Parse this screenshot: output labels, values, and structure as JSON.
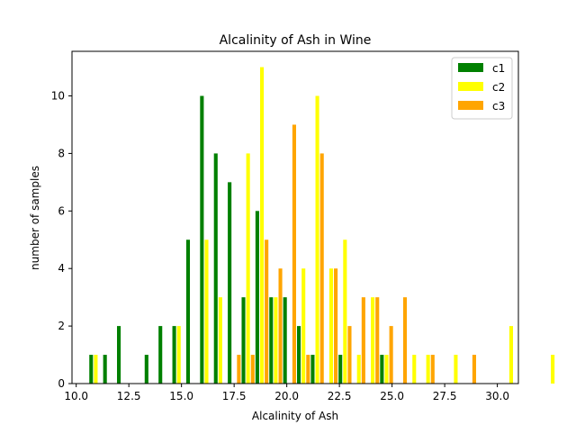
{
  "chart_data": {
    "type": "bar",
    "title": "Alcalinity of Ash in Wine",
    "xlabel": "Alcalinity of Ash",
    "ylabel": "number of samples",
    "xlim": [
      9.8,
      31.0
    ],
    "ylim": [
      0,
      11.55
    ],
    "xticks": [
      10.0,
      12.5,
      15.0,
      17.5,
      20.0,
      22.5,
      25.0,
      27.5,
      30.0
    ],
    "xtick_labels": [
      "10.0",
      "12.5",
      "15.0",
      "17.5",
      "20.0",
      "22.5",
      "25.0",
      "27.5",
      "30.0"
    ],
    "yticks": [
      0,
      2,
      4,
      6,
      8,
      10
    ],
    "ytick_labels": [
      "0",
      "2",
      "4",
      "6",
      "8",
      "10"
    ],
    "bin_start": 10.6,
    "bin_width": 0.6576,
    "grid": false,
    "legend_position": "top-right",
    "series": [
      {
        "name": "c1",
        "color": "#008000",
        "values": [
          1,
          1,
          2,
          0,
          1,
          2,
          2,
          5,
          10,
          8,
          7,
          3,
          6,
          3,
          3,
          2,
          1,
          0,
          1,
          0,
          0,
          1,
          0,
          0,
          0,
          0,
          0,
          0,
          0,
          0,
          0,
          0,
          0,
          0
        ]
      },
      {
        "name": "c2",
        "color": "#ffff00",
        "values": [
          1,
          0,
          0,
          0,
          0,
          0,
          2,
          0,
          5,
          3,
          0,
          8,
          11,
          3,
          0,
          4,
          10,
          4,
          5,
          1,
          3,
          1,
          0,
          1,
          1,
          0,
          1,
          0,
          0,
          0,
          2,
          0,
          0,
          1
        ]
      },
      {
        "name": "c3",
        "color": "#ffa500",
        "values": [
          0,
          0,
          0,
          0,
          0,
          0,
          0,
          0,
          0,
          0,
          1,
          1,
          5,
          4,
          9,
          1,
          8,
          4,
          2,
          3,
          3,
          2,
          3,
          0,
          1,
          0,
          0,
          1,
          0,
          0,
          0,
          0,
          0,
          0
        ]
      }
    ]
  }
}
